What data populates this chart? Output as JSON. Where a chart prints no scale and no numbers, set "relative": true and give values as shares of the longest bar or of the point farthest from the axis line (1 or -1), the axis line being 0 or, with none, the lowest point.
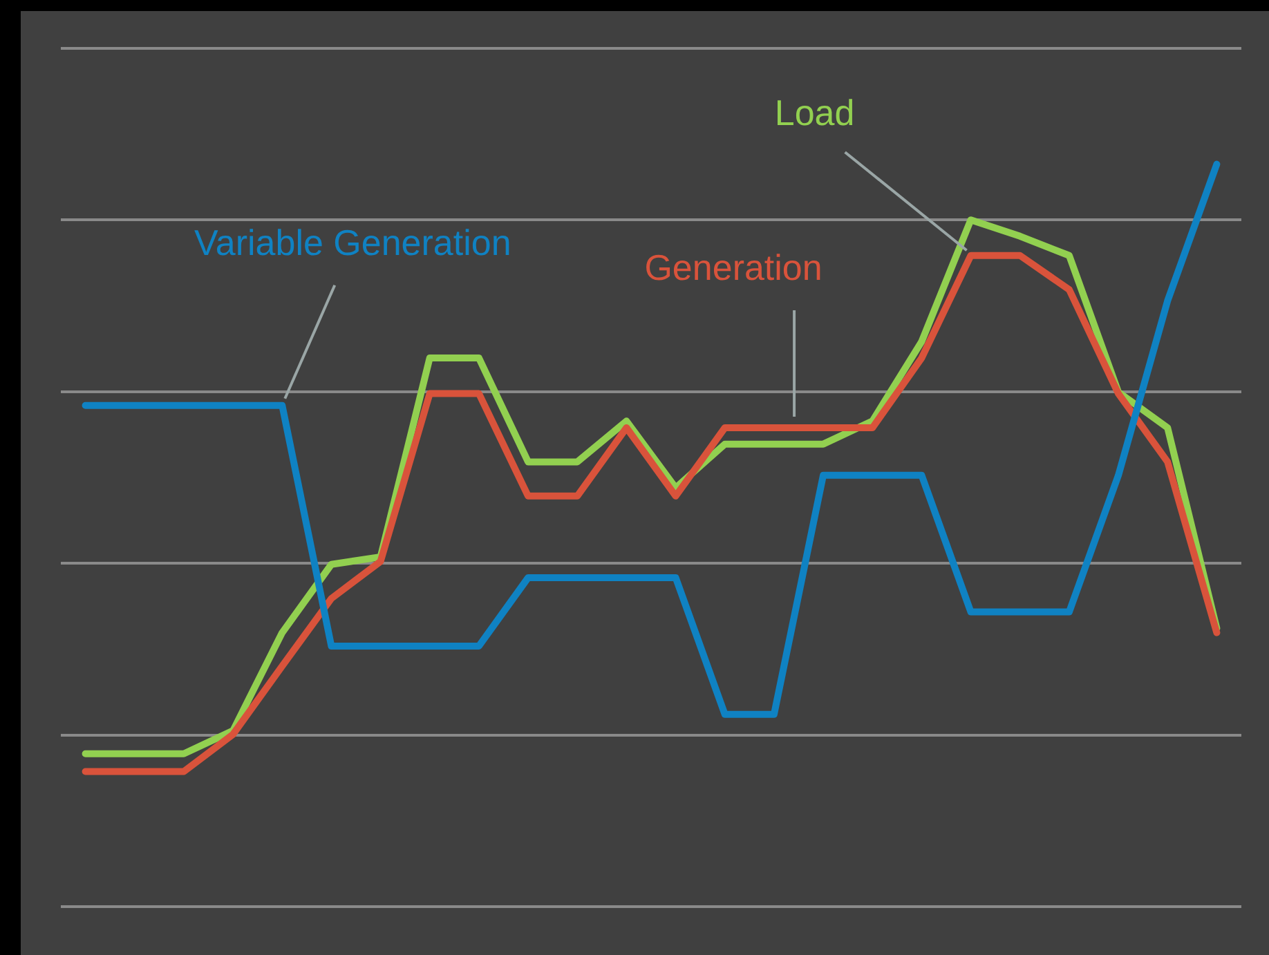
{
  "chart_data": {
    "type": "line",
    "relative": true,
    "grid": "y",
    "legend": false,
    "marker": "none",
    "line_style": "solid",
    "categories": [
      null,
      null,
      null,
      null,
      null,
      null,
      null,
      null,
      null,
      null,
      null,
      null,
      null,
      null,
      null,
      null,
      null,
      null,
      null,
      null,
      null,
      null,
      null,
      null
    ],
    "series": [
      {
        "name": "Variable Generation",
        "color": "#0f82c3",
        "values": [
          0.675,
          0.675,
          0.675,
          0.675,
          0.675,
          0.351,
          0.351,
          0.351,
          0.351,
          0.443,
          0.443,
          0.443,
          0.443,
          0.259,
          0.259,
          0.581,
          0.581,
          0.581,
          0.397,
          0.397,
          0.397,
          0.581,
          0.816,
          1
        ]
      },
      {
        "name": "Generation",
        "color": "#d9533b",
        "values": [
          0.182,
          0.182,
          0.182,
          0.232,
          0.324,
          0.415,
          0.465,
          0.691,
          0.691,
          0.553,
          0.553,
          0.645,
          0.553,
          0.645,
          0.645,
          0.645,
          0.645,
          0.739,
          0.877,
          0.877,
          0.831,
          0.691,
          0.599,
          0.369
        ]
      },
      {
        "name": "Load",
        "color": "#92d050",
        "values": [
          0.206,
          0.206,
          0.206,
          0.237,
          0.369,
          0.461,
          0.471,
          0.739,
          0.739,
          0.599,
          0.599,
          0.654,
          0.564,
          0.623,
          0.623,
          0.623,
          0.654,
          0.761,
          0.925,
          0.903,
          0.877,
          0.693,
          0.645,
          0.375
        ]
      }
    ]
  }
}
